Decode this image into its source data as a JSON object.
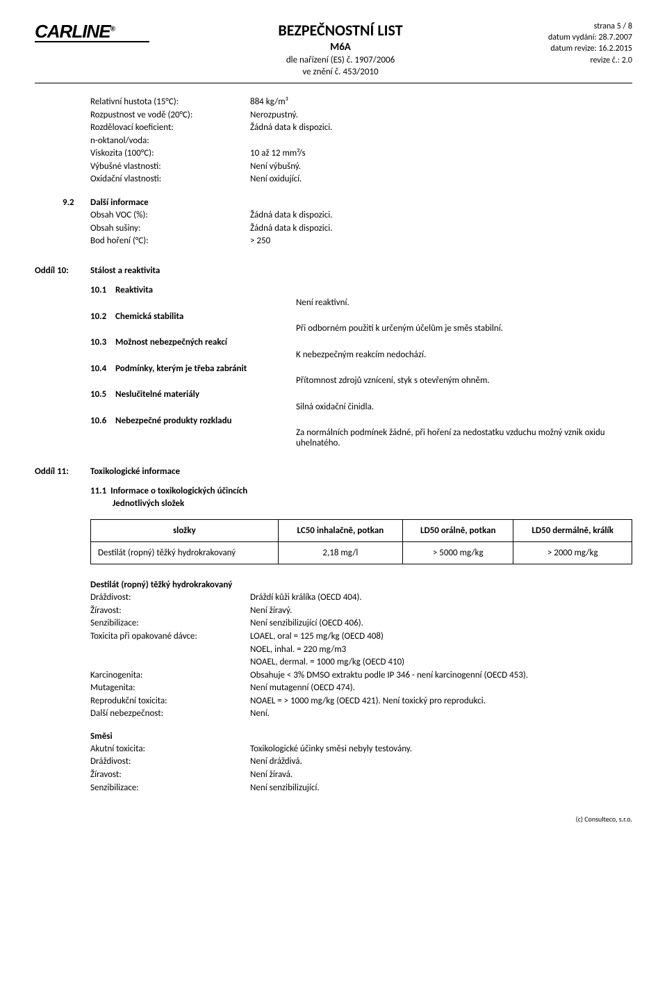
{
  "header": {
    "logo_text": "CARLINE",
    "logo_reg": "®",
    "title": "BEZPEČNOSTNÍ LIST",
    "subtitle": "M6A",
    "reg1": "dle nařízení (ES) č. 1907/2006",
    "reg2": "ve znění č. 453/2010",
    "page": "strana 5 / 8",
    "issued": "datum vydání: 28.7.2007",
    "revised": "datum revize: 16.2.2015",
    "revnum": "revize č.: 2.0"
  },
  "section9_cont": [
    {
      "k": "Relativní hustota (15°C):",
      "v": "884 kg/m³"
    },
    {
      "k": "Rozpustnost ve vodě (20°C):",
      "v": "Nerozpustný."
    },
    {
      "k": "Rozdělovací koeficient:",
      "v": "Žádná data k dispozici."
    },
    {
      "k": "n-oktanol/voda:",
      "v": ""
    },
    {
      "k": "Viskozita (100°C):",
      "v": "10 až 12 mm²/s"
    },
    {
      "k": "Výbušné vlastnosti:",
      "v": "Není výbušný."
    },
    {
      "k": "Oxidační vlastnosti:",
      "v": "Není oxidující."
    }
  ],
  "section9_2": {
    "num": "9.2",
    "label": "Další informace",
    "rows": [
      {
        "k": "Obsah VOC (%):",
        "v": "Žádná data k dispozici."
      },
      {
        "k": "Obsah sušiny:",
        "v": "Žádná data k dispozici."
      },
      {
        "k": "Bod hoření (°C):",
        "v": "> 250"
      }
    ]
  },
  "oddil10": {
    "num": "Oddíl 10:",
    "label": "Stálost a reaktivita",
    "items": [
      {
        "n": "10.1",
        "t": "Reaktivita",
        "v": "Není reaktivní."
      },
      {
        "n": "10.2",
        "t": "Chemická stabilita",
        "v": "Při odborném použití k určeným účelům je směs stabilní."
      },
      {
        "n": "10.3",
        "t": "Možnost nebezpečných reakcí",
        "v": "K nebezpečným reakcím nedochází."
      },
      {
        "n": "10.4",
        "t": "Podmínky, kterým je třeba zabránit",
        "v": "Přítomnost zdrojů vznícení, styk s otevřeným ohněm."
      },
      {
        "n": "10.5",
        "t": "Neslučitelné materiály",
        "v": "Silná oxidační činidla."
      },
      {
        "n": "10.6",
        "t": "Nebezpečné produkty rozkladu",
        "v": "Za normálních podmínek žádné, při hoření za nedostatku vzduchu možný vznik oxidu uhelnatého."
      }
    ]
  },
  "oddil11": {
    "num": "Oddíl 11:",
    "label": "Toxikologické informace",
    "sub_num": "11.1",
    "sub_label": "Informace o toxikologických účincích",
    "sub_label2": "Jednotlivých složek",
    "table": {
      "headers": [
        "složky",
        "LC50 inhalačně, potkan",
        "LD50 orálně, potkan",
        "LD50 dermálně, králík"
      ],
      "row": [
        "Destilát (ropný) těžký hydrokrakovaný",
        "2,18 mg/l",
        "> 5000 mg/kg",
        "> 2000 mg/kg"
      ]
    },
    "destilat": {
      "title": "Destilát (ropný) těžký hydrokrakovaný",
      "rows": [
        {
          "k": "Dráždivost:",
          "v": "Dráždí kůži králíka (OECD 404)."
        },
        {
          "k": "Žíravost:",
          "v": "Není žíravý."
        },
        {
          "k": "Senzibilizace:",
          "v": "Není senzibilizující (OECD 406)."
        },
        {
          "k": "Toxicita při opakované dávce:",
          "v": "LOAEL, oral = 125 mg/kg (OECD 408)"
        },
        {
          "k": "",
          "v": "NOEL, inhal. = 220 mg/m3"
        },
        {
          "k": "",
          "v": "NOAEL, dermal. = 1000 mg/kg (OECD 410)"
        },
        {
          "k": "Karcinogenita:",
          "v": "Obsahuje < 3% DMSO extraktu podle IP 346 - není karcinogenní (OECD 453)."
        },
        {
          "k": "Mutagenita:",
          "v": "Není mutagenní (OECD 474)."
        },
        {
          "k": "Reprodukční toxicita:",
          "v": "NOAEL = > 1000 mg/kg (OECD 421). Není toxický pro reprodukci."
        },
        {
          "k": "Další nebezpečnost:",
          "v": "Není."
        }
      ]
    },
    "smesi": {
      "title": "Směsi",
      "rows": [
        {
          "k": "Akutní toxicita:",
          "v": "Toxikologické účinky směsi nebyly testovány."
        },
        {
          "k": "Dráždivost:",
          "v": "Není dráždivá."
        },
        {
          "k": "Žíravost:",
          "v": "Není žíravá."
        },
        {
          "k": "Senzibilizace:",
          "v": "Není senzibilizující."
        }
      ]
    }
  },
  "footer": "(c) Consulteco, s.r.o."
}
